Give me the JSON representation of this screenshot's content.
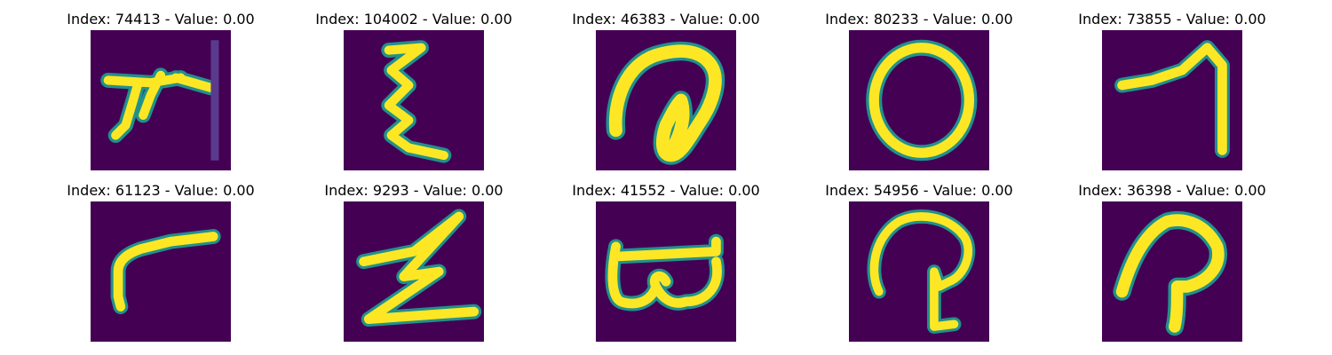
{
  "figure": {
    "colormap_background": "#440154",
    "colormap_mid": "#21918c",
    "colormap_high": "#fde725",
    "panels": [
      {
        "title": "Index: 74413 - Value: 0.00",
        "glyph": "char-74413-icon"
      },
      {
        "title": "Index: 104002 - Value: 0.00",
        "glyph": "char-104002-icon"
      },
      {
        "title": "Index: 46383 - Value: 0.00",
        "glyph": "char-46383-icon"
      },
      {
        "title": "Index: 80233 - Value: 0.00",
        "glyph": "char-80233-icon"
      },
      {
        "title": "Index: 73855 - Value: 0.00",
        "glyph": "char-73855-icon"
      },
      {
        "title": "Index: 61123 - Value: 0.00",
        "glyph": "char-61123-icon"
      },
      {
        "title": "Index: 9293 - Value: 0.00",
        "glyph": "char-9293-icon"
      },
      {
        "title": "Index: 41552 - Value: 0.00",
        "glyph": "char-41552-icon"
      },
      {
        "title": "Index: 54956 - Value: 0.00",
        "glyph": "char-54956-icon"
      },
      {
        "title": "Index: 36398 - Value: 0.00",
        "glyph": "char-36398-icon"
      }
    ]
  }
}
